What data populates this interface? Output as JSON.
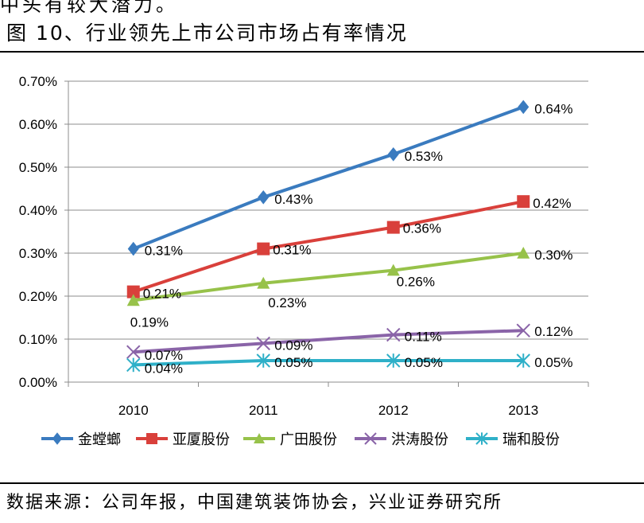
{
  "header": {
    "top_fragment": "中头有较大潜力。",
    "figure_title": "图 10、行业领先上市公司市场占有率情况"
  },
  "footer": {
    "source": "数据来源：公司年报，中国建筑装饰协会，兴业证券研究所"
  },
  "chart_data": {
    "type": "line",
    "categories": [
      "2010",
      "2011",
      "2012",
      "2013"
    ],
    "ylim": [
      0,
      0.7
    ],
    "yticks": [
      "0.00%",
      "0.10%",
      "0.20%",
      "0.30%",
      "0.40%",
      "0.50%",
      "0.60%",
      "0.70%"
    ],
    "ytick_values": [
      0,
      0.1,
      0.2,
      0.3,
      0.4,
      0.5,
      0.6,
      0.7
    ],
    "grid": true,
    "legend_position": "bottom",
    "series": [
      {
        "name": "金螳螂",
        "color": "#3a7bbf",
        "marker": "diamond",
        "values": [
          0.31,
          0.43,
          0.53,
          0.64
        ],
        "labels": [
          "0.31%",
          "0.43%",
          "0.53%",
          "0.64%"
        ]
      },
      {
        "name": "亚厦股份",
        "color": "#d9403b",
        "marker": "square",
        "values": [
          0.21,
          0.31,
          0.36,
          0.42
        ],
        "labels": [
          "0.21%",
          "0.31%",
          "0.36%",
          "0.42%"
        ]
      },
      {
        "name": "广田股份",
        "color": "#97c24a",
        "marker": "triangle",
        "values": [
          0.19,
          0.23,
          0.26,
          0.3
        ],
        "labels": [
          "0.19%",
          "0.23%",
          "0.26%",
          "0.30%"
        ]
      },
      {
        "name": "洪涛股份",
        "color": "#8a64a8",
        "marker": "x",
        "values": [
          0.07,
          0.09,
          0.11,
          0.12
        ],
        "labels": [
          "0.07%",
          "0.09%",
          "0.11%",
          "0.12%"
        ]
      },
      {
        "name": "瑞和股份",
        "color": "#2fb0c8",
        "marker": "asterisk",
        "values": [
          0.04,
          0.05,
          0.05,
          0.05
        ],
        "labels": [
          "0.04%",
          "0.05%",
          "0.05%",
          "0.05%"
        ]
      }
    ]
  }
}
